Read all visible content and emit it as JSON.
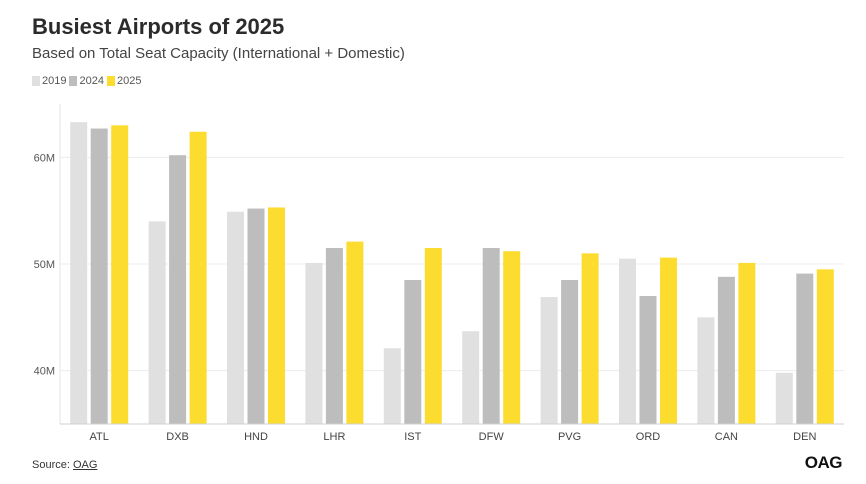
{
  "header": {
    "title": "Busiest Airports of 2025",
    "subtitle": "Based on Total Seat Capacity (International + Domestic)"
  },
  "legend": [
    {
      "label": "2019",
      "color": "#e0e0e0"
    },
    {
      "label": "2024",
      "color": "#bdbdbd"
    },
    {
      "label": "2025",
      "color": "#fddc30"
    }
  ],
  "footer": {
    "source_prefix": "Source:",
    "source_link": "OAG",
    "logo": "OAG"
  },
  "chart_data": {
    "type": "bar",
    "title": "Busiest Airports of 2025",
    "subtitle": "Based on Total Seat Capacity (International + Domestic)",
    "xlabel": "",
    "ylabel": "",
    "categories": [
      "ATL",
      "DXB",
      "HND",
      "LHR",
      "IST",
      "DFW",
      "PVG",
      "ORD",
      "CAN",
      "DEN"
    ],
    "series": [
      {
        "name": "2019",
        "color": "#e0e0e0",
        "values": [
          63.3,
          54.0,
          54.9,
          50.1,
          42.1,
          43.7,
          46.9,
          50.5,
          45.0,
          39.8
        ]
      },
      {
        "name": "2024",
        "color": "#bdbdbd",
        "values": [
          62.7,
          60.2,
          55.2,
          51.5,
          48.5,
          51.5,
          48.5,
          47.0,
          48.8,
          49.1
        ]
      },
      {
        "name": "2025",
        "color": "#fddc30",
        "values": [
          63.0,
          62.4,
          55.3,
          52.1,
          51.5,
          51.2,
          51.0,
          50.6,
          50.1,
          49.5
        ]
      }
    ],
    "yticks": [
      40,
      50,
      60
    ],
    "ytick_labels": [
      "40M",
      "50M",
      "60M"
    ],
    "ylim": [
      35.0,
      65.0
    ],
    "grid": true,
    "legend_position": "top-left"
  }
}
